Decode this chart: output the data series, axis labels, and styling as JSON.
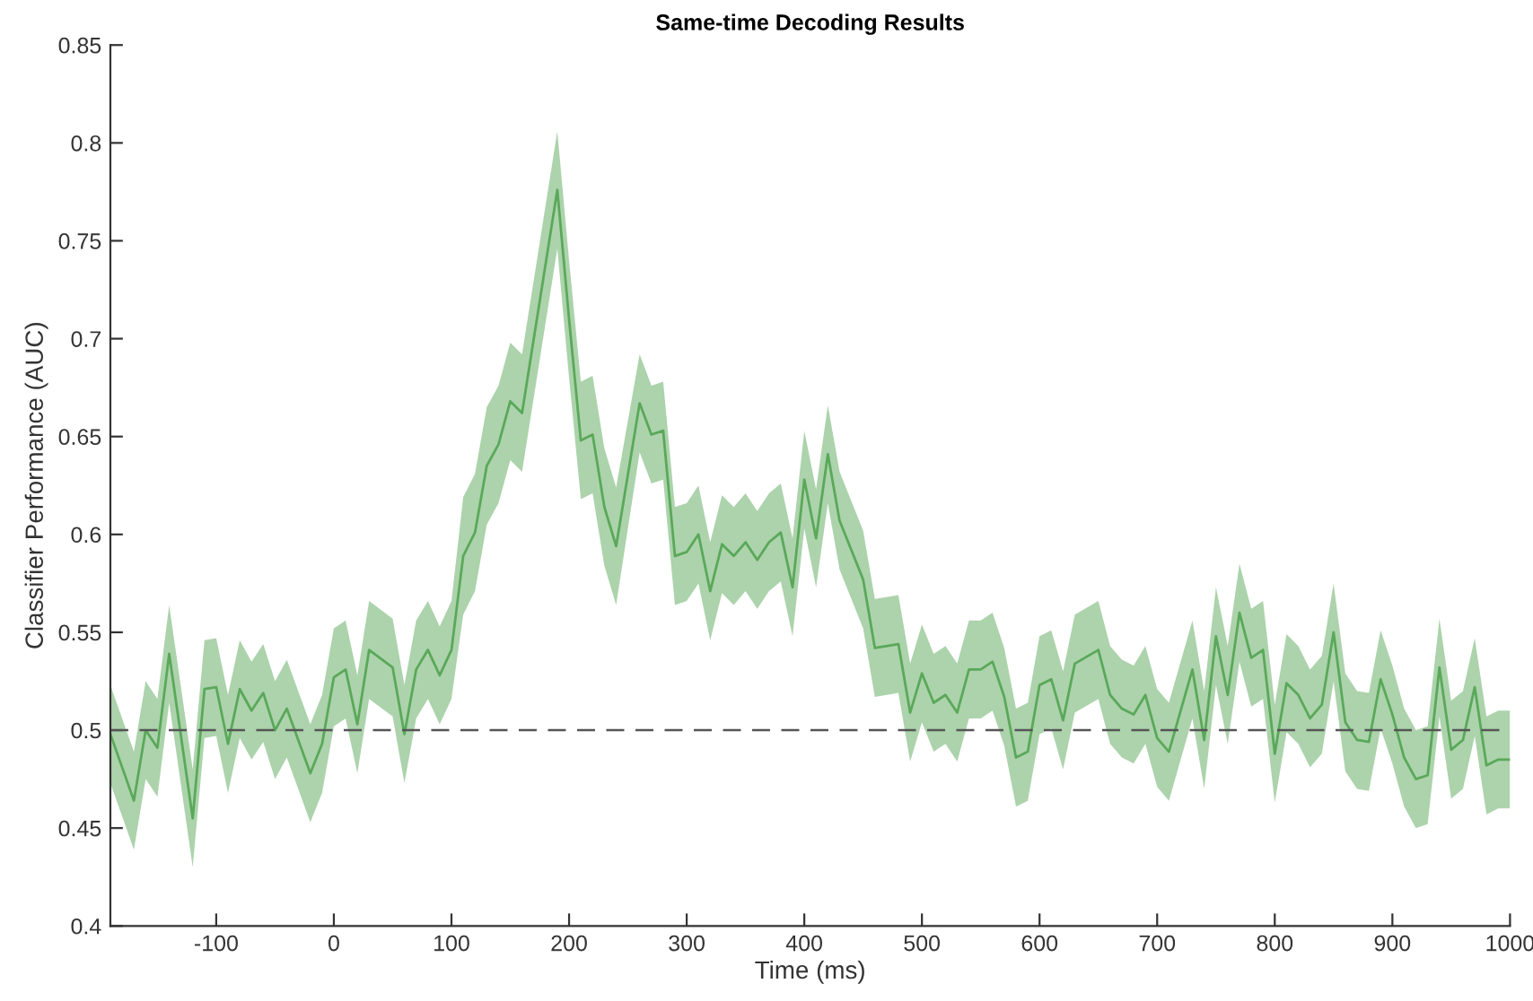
{
  "chart_data": {
    "type": "line",
    "title": "Same-time Decoding Results",
    "xlabel": "Time (ms)",
    "ylabel": "Classifier Performance (AUC)",
    "xlim": [
      -190,
      1000
    ],
    "xticks": [
      -100,
      0,
      100,
      200,
      300,
      400,
      500,
      600,
      700,
      800,
      900,
      1000
    ],
    "ylim": [
      0.4,
      0.85
    ],
    "yticks": [
      0.4,
      0.45,
      0.5,
      0.55,
      0.6,
      0.65,
      0.7,
      0.75,
      0.8,
      0.85
    ],
    "grid": false,
    "legend": false,
    "marker": "none",
    "line_style": "solid",
    "ref_lines": [
      {
        "axis": "y",
        "value": 0.5,
        "label": null,
        "color": "#555555",
        "line_style": "dashed"
      }
    ],
    "series": [
      {
        "color": "#5aa85a",
        "x": [
          -190,
          -170,
          -160,
          -150,
          -140,
          -120,
          -110,
          -100,
          -90,
          -80,
          -70,
          -60,
          -50,
          -40,
          -20,
          -10,
          0,
          10,
          20,
          30,
          50,
          60,
          70,
          80,
          90,
          100,
          110,
          120,
          130,
          140,
          150,
          160,
          190,
          200,
          210,
          220,
          230,
          240,
          260,
          270,
          280,
          290,
          300,
          310,
          320,
          330,
          340,
          350,
          360,
          370,
          380,
          390,
          400,
          410,
          420,
          430,
          440,
          450,
          460,
          480,
          490,
          500,
          510,
          520,
          530,
          540,
          550,
          560,
          570,
          580,
          590,
          600,
          610,
          620,
          630,
          650,
          660,
          670,
          680,
          690,
          700,
          710,
          730,
          740,
          750,
          760,
          770,
          780,
          790,
          800,
          810,
          820,
          830,
          840,
          850,
          860,
          870,
          880,
          890,
          900,
          910,
          920,
          930,
          940,
          950,
          960,
          970,
          980,
          990,
          1000
        ],
        "values": [
          0.498,
          0.464,
          0.5,
          0.491,
          0.539,
          0.455,
          0.521,
          0.522,
          0.493,
          0.521,
          0.51,
          0.519,
          0.5,
          0.511,
          0.478,
          0.493,
          0.527,
          0.531,
          0.503,
          0.541,
          0.532,
          0.498,
          0.531,
          0.541,
          0.528,
          0.541,
          0.589,
          0.601,
          0.635,
          0.646,
          0.668,
          0.662,
          0.776,
          0.71,
          0.648,
          0.651,
          0.614,
          0.594,
          0.667,
          0.651,
          0.653,
          0.589,
          0.591,
          0.6,
          0.571,
          0.595,
          0.589,
          0.596,
          0.587,
          0.596,
          0.601,
          0.573,
          0.628,
          0.598,
          0.641,
          0.607,
          0.592,
          0.577,
          0.542,
          0.544,
          0.509,
          0.529,
          0.514,
          0.518,
          0.509,
          0.531,
          0.531,
          0.535,
          0.517,
          0.486,
          0.489,
          0.523,
          0.526,
          0.505,
          0.534,
          0.541,
          0.518,
          0.511,
          0.508,
          0.518,
          0.496,
          0.489,
          0.531,
          0.495,
          0.548,
          0.518,
          0.56,
          0.537,
          0.541,
          0.488,
          0.524,
          0.518,
          0.506,
          0.513,
          0.55,
          0.504,
          0.495,
          0.494,
          0.526,
          0.508,
          0.486,
          0.475,
          0.477,
          0.532,
          0.49,
          0.495,
          0.522,
          0.482,
          0.485,
          0.485
        ],
        "lower": [
          0.473,
          0.439,
          0.475,
          0.466,
          0.514,
          0.43,
          0.496,
          0.497,
          0.468,
          0.496,
          0.485,
          0.494,
          0.475,
          0.486,
          0.453,
          0.468,
          0.502,
          0.506,
          0.478,
          0.516,
          0.507,
          0.473,
          0.506,
          0.516,
          0.503,
          0.516,
          0.559,
          0.571,
          0.605,
          0.616,
          0.638,
          0.632,
          0.746,
          0.68,
          0.618,
          0.621,
          0.584,
          0.564,
          0.642,
          0.626,
          0.628,
          0.564,
          0.566,
          0.575,
          0.546,
          0.57,
          0.564,
          0.571,
          0.562,
          0.571,
          0.576,
          0.548,
          0.603,
          0.573,
          0.616,
          0.582,
          0.567,
          0.552,
          0.517,
          0.519,
          0.484,
          0.504,
          0.489,
          0.493,
          0.484,
          0.506,
          0.506,
          0.51,
          0.492,
          0.461,
          0.464,
          0.498,
          0.501,
          0.48,
          0.509,
          0.516,
          0.493,
          0.486,
          0.483,
          0.493,
          0.471,
          0.464,
          0.506,
          0.47,
          0.523,
          0.493,
          0.535,
          0.512,
          0.516,
          0.463,
          0.499,
          0.493,
          0.481,
          0.488,
          0.525,
          0.479,
          0.47,
          0.469,
          0.501,
          0.483,
          0.461,
          0.45,
          0.452,
          0.507,
          0.465,
          0.47,
          0.497,
          0.457,
          0.46,
          0.46
        ],
        "upper": [
          0.523,
          0.489,
          0.525,
          0.516,
          0.564,
          0.48,
          0.546,
          0.547,
          0.518,
          0.546,
          0.535,
          0.544,
          0.525,
          0.536,
          0.503,
          0.518,
          0.552,
          0.556,
          0.528,
          0.566,
          0.557,
          0.523,
          0.556,
          0.566,
          0.553,
          0.566,
          0.619,
          0.631,
          0.665,
          0.676,
          0.698,
          0.692,
          0.806,
          0.74,
          0.678,
          0.681,
          0.644,
          0.624,
          0.692,
          0.676,
          0.678,
          0.614,
          0.616,
          0.625,
          0.596,
          0.62,
          0.614,
          0.621,
          0.612,
          0.621,
          0.626,
          0.598,
          0.653,
          0.623,
          0.666,
          0.632,
          0.617,
          0.602,
          0.567,
          0.569,
          0.534,
          0.554,
          0.539,
          0.543,
          0.534,
          0.556,
          0.556,
          0.56,
          0.542,
          0.511,
          0.514,
          0.548,
          0.551,
          0.53,
          0.559,
          0.566,
          0.543,
          0.536,
          0.533,
          0.543,
          0.521,
          0.514,
          0.556,
          0.52,
          0.573,
          0.543,
          0.585,
          0.562,
          0.566,
          0.513,
          0.549,
          0.543,
          0.531,
          0.538,
          0.575,
          0.529,
          0.52,
          0.519,
          0.551,
          0.533,
          0.511,
          0.5,
          0.502,
          0.557,
          0.515,
          0.52,
          0.547,
          0.507,
          0.51,
          0.51
        ]
      }
    ]
  }
}
